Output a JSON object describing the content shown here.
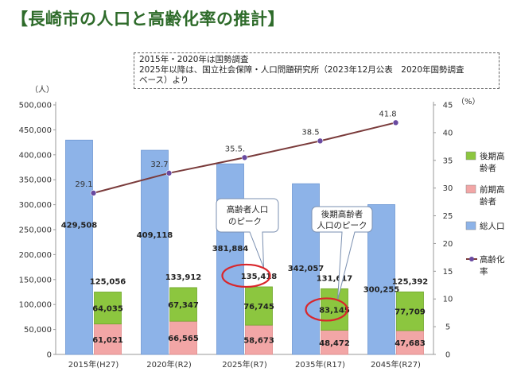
{
  "page": {
    "title": "【長崎市の人口と高齢化率の推計】",
    "note_lines": [
      "2015年・2020年は国勢調査",
      "2025年以降は、国立社会保障・人口問題研究所（2023年12月公表　2020年国勢調査",
      "ベース）より"
    ]
  },
  "colors": {
    "total": "#8db3e8",
    "late_elderly": "#8cc63f",
    "early_elderly": "#f2a6a6",
    "rate_line": "#7a3b3b",
    "rate_marker": "#6a4aa0",
    "highlight_circle": "#d9262b",
    "title": "#2e6b2a"
  },
  "chart_data": {
    "type": "bar",
    "categories": [
      "2015年(H27)",
      "2020年(R2)",
      "2025年(R7)",
      "2035年(R17)",
      "2045年(R27)"
    ],
    "y_unit": "（人）",
    "y2_unit": "（%）",
    "ylim": [
      0,
      500000
    ],
    "yticks": [
      "0",
      "50,000",
      "100,000",
      "150,000",
      "200,000",
      "250,000",
      "300,000",
      "350,000",
      "400,000",
      "450,000",
      "500,000"
    ],
    "y2lim": [
      0,
      45
    ],
    "y2ticks": [
      "0",
      "5",
      "10",
      "15",
      "20",
      "25",
      "30",
      "35",
      "40",
      "45"
    ],
    "series": [
      {
        "name": "総人口",
        "key": "total",
        "values": [
          429508,
          409118,
          381884,
          342057,
          300255
        ],
        "labels": [
          "429,508",
          "409,118",
          "381,884",
          "342,057",
          "300,255"
        ]
      },
      {
        "name": "前期高齢者",
        "key": "early_elderly",
        "values": [
          61021,
          66565,
          58673,
          48472,
          47683
        ],
        "labels": [
          "61,021",
          "66,565",
          "58,673",
          "48,472",
          "47,683"
        ]
      },
      {
        "name": "後期高齢者",
        "key": "late_elderly",
        "values": [
          64035,
          67347,
          76745,
          83145,
          77709
        ],
        "labels": [
          "64,035",
          "67,347",
          "76,745",
          "83,145",
          "77,709"
        ]
      },
      {
        "name": "高齢化率",
        "key": "rate",
        "values": [
          29.1,
          32.7,
          35.5,
          38.5,
          41.8
        ],
        "labels": [
          "29.1",
          "32.7",
          "35.5.",
          "38.5",
          "41.8"
        ]
      }
    ],
    "elderly_totals": [
      125056,
      133912,
      135418,
      131617,
      125392
    ],
    "elderly_total_labels": [
      "125,056",
      "133,912",
      "135,418",
      "131,617",
      "125,392"
    ],
    "legend": [
      {
        "key": "late_elderly",
        "lines": [
          "後期高",
          "齢者"
        ]
      },
      {
        "key": "early_elderly",
        "lines": [
          "前期高",
          "齢者"
        ]
      },
      {
        "key": "total",
        "lines": [
          "総人口"
        ]
      },
      {
        "key": "rate",
        "lines": [
          "高齢化",
          "率"
        ]
      }
    ],
    "annotations": [
      {
        "lines": [
          "高齢者人口",
          "のピーク"
        ],
        "category_index": 2,
        "target": "elderly_total"
      },
      {
        "lines": [
          "後期高齢者",
          "人口のピーク"
        ],
        "category_index": 3,
        "target": "late_elderly"
      }
    ]
  }
}
